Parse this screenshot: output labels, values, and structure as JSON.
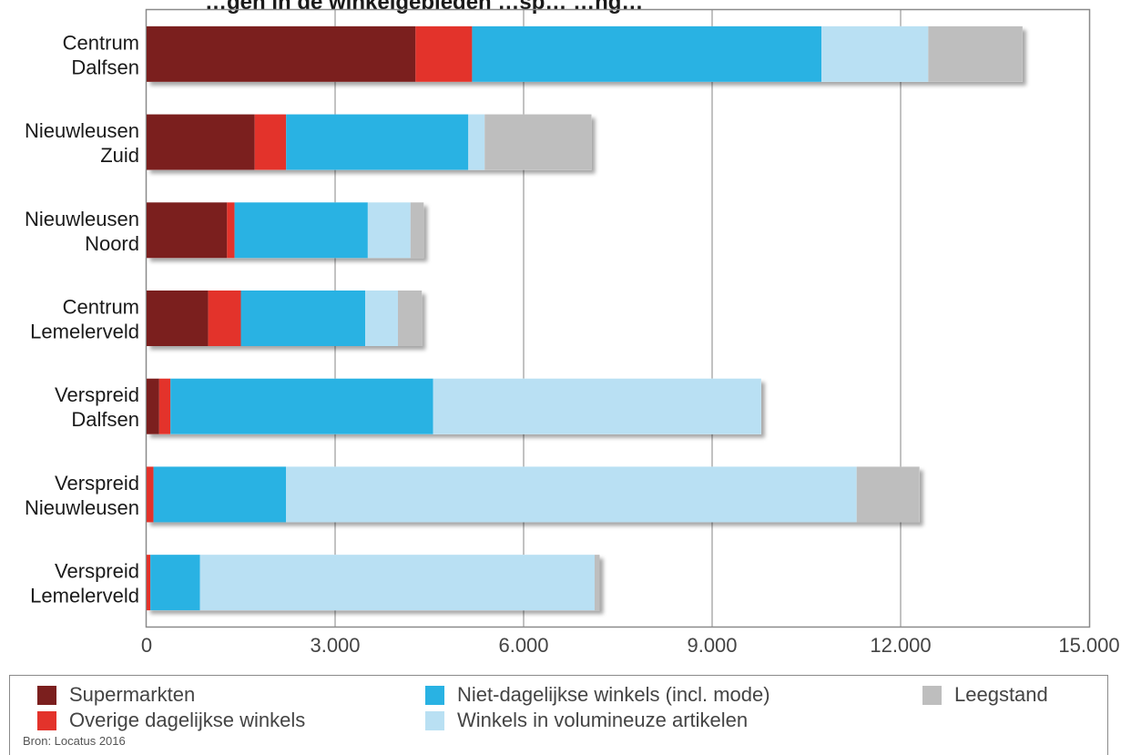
{
  "chart_data": {
    "type": "bar",
    "orientation": "horizontal",
    "stacked": true,
    "title": "…gen in de winkelgebieden …sp… …ng…",
    "categories": [
      [
        "Centrum",
        "Dalfsen"
      ],
      [
        "Nieuwleusen",
        "Zuid"
      ],
      [
        "Nieuwleusen",
        "Noord"
      ],
      [
        "Centrum",
        "Lemelerveld"
      ],
      [
        "Verspreid",
        "Dalfsen"
      ],
      [
        "Verspreid",
        "Nieuwleusen"
      ],
      [
        "Verspreid",
        "Lemelerveld"
      ]
    ],
    "series": [
      {
        "name": "Supermarkten",
        "color": "#7b1f1e",
        "values": [
          4280,
          1720,
          1280,
          980,
          200,
          0,
          0
        ]
      },
      {
        "name": "Overige dagelijkse winkels",
        "color": "#e3332b",
        "values": [
          900,
          500,
          120,
          520,
          180,
          110,
          60
        ]
      },
      {
        "name": "Niet-dagelijkse winkels (incl. mode)",
        "color": "#29b2e3",
        "values": [
          5560,
          2900,
          2120,
          1980,
          4180,
          2110,
          790
        ]
      },
      {
        "name": "Winkels in volumineuze artikelen",
        "color": "#b9e0f3",
        "values": [
          1700,
          260,
          680,
          520,
          5220,
          9080,
          6280
        ]
      },
      {
        "name": "Leegstand",
        "color": "#bebebe",
        "values": [
          1500,
          1700,
          210,
          380,
          0,
          1000,
          80
        ]
      }
    ],
    "xlim": [
      0,
      15000
    ],
    "xticks": [
      0,
      3000,
      6000,
      9000,
      12000,
      15000
    ],
    "xtick_labels": [
      "0",
      "3.000",
      "6.000",
      "9.000",
      "12.000",
      "15.000"
    ],
    "grid": "vertical",
    "legend_position": "bottom",
    "source": "Bron: Locatus 2016"
  }
}
